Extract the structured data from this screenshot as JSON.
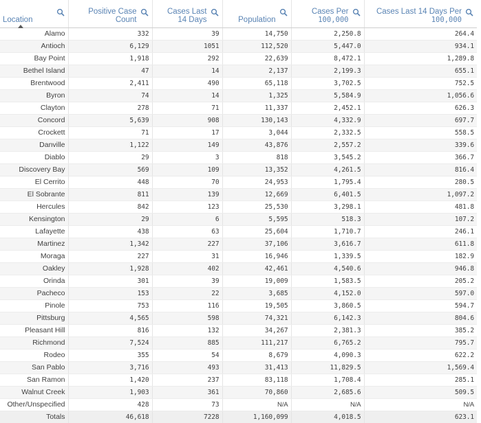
{
  "headers": {
    "location": "Location",
    "positive_case_count_line1": "Positive Case",
    "positive_case_count_line2": "Count",
    "cases_last_14_line1": "Cases Last",
    "cases_last_14_line2": "14 Days",
    "population": "Population",
    "cases_per_line1": "Cases Per",
    "cases_per_line2": "100,000",
    "cases_14_per_line1": "Cases Last 14 Days Per",
    "cases_14_per_line2": "100,000"
  },
  "rows": [
    {
      "location": "Alamo",
      "positive": "332",
      "last14": "39",
      "population": "14,750",
      "per100k": "2,250.8",
      "last14per100k": "264.4"
    },
    {
      "location": "Antioch",
      "positive": "6,129",
      "last14": "1051",
      "population": "112,520",
      "per100k": "5,447.0",
      "last14per100k": "934.1"
    },
    {
      "location": "Bay Point",
      "positive": "1,918",
      "last14": "292",
      "population": "22,639",
      "per100k": "8,472.1",
      "last14per100k": "1,289.8"
    },
    {
      "location": "Bethel Island",
      "positive": "47",
      "last14": "14",
      "population": "2,137",
      "per100k": "2,199.3",
      "last14per100k": "655.1"
    },
    {
      "location": "Brentwood",
      "positive": "2,411",
      "last14": "490",
      "population": "65,118",
      "per100k": "3,702.5",
      "last14per100k": "752.5"
    },
    {
      "location": "Byron",
      "positive": "74",
      "last14": "14",
      "population": "1,325",
      "per100k": "5,584.9",
      "last14per100k": "1,056.6"
    },
    {
      "location": "Clayton",
      "positive": "278",
      "last14": "71",
      "population": "11,337",
      "per100k": "2,452.1",
      "last14per100k": "626.3"
    },
    {
      "location": "Concord",
      "positive": "5,639",
      "last14": "908",
      "population": "130,143",
      "per100k": "4,332.9",
      "last14per100k": "697.7"
    },
    {
      "location": "Crockett",
      "positive": "71",
      "last14": "17",
      "population": "3,044",
      "per100k": "2,332.5",
      "last14per100k": "558.5"
    },
    {
      "location": "Danville",
      "positive": "1,122",
      "last14": "149",
      "population": "43,876",
      "per100k": "2,557.2",
      "last14per100k": "339.6"
    },
    {
      "location": "Diablo",
      "positive": "29",
      "last14": "3",
      "population": "818",
      "per100k": "3,545.2",
      "last14per100k": "366.7"
    },
    {
      "location": "Discovery Bay",
      "positive": "569",
      "last14": "109",
      "population": "13,352",
      "per100k": "4,261.5",
      "last14per100k": "816.4"
    },
    {
      "location": "El Cerrito",
      "positive": "448",
      "last14": "70",
      "population": "24,953",
      "per100k": "1,795.4",
      "last14per100k": "280.5"
    },
    {
      "location": "El Sobrante",
      "positive": "811",
      "last14": "139",
      "population": "12,669",
      "per100k": "6,401.5",
      "last14per100k": "1,097.2"
    },
    {
      "location": "Hercules",
      "positive": "842",
      "last14": "123",
      "population": "25,530",
      "per100k": "3,298.1",
      "last14per100k": "481.8"
    },
    {
      "location": "Kensington",
      "positive": "29",
      "last14": "6",
      "population": "5,595",
      "per100k": "518.3",
      "last14per100k": "107.2"
    },
    {
      "location": "Lafayette",
      "positive": "438",
      "last14": "63",
      "population": "25,604",
      "per100k": "1,710.7",
      "last14per100k": "246.1"
    },
    {
      "location": "Martinez",
      "positive": "1,342",
      "last14": "227",
      "population": "37,106",
      "per100k": "3,616.7",
      "last14per100k": "611.8"
    },
    {
      "location": "Moraga",
      "positive": "227",
      "last14": "31",
      "population": "16,946",
      "per100k": "1,339.5",
      "last14per100k": "182.9"
    },
    {
      "location": "Oakley",
      "positive": "1,928",
      "last14": "402",
      "population": "42,461",
      "per100k": "4,540.6",
      "last14per100k": "946.8"
    },
    {
      "location": "Orinda",
      "positive": "301",
      "last14": "39",
      "population": "19,009",
      "per100k": "1,583.5",
      "last14per100k": "205.2"
    },
    {
      "location": "Pacheco",
      "positive": "153",
      "last14": "22",
      "population": "3,685",
      "per100k": "4,152.0",
      "last14per100k": "597.0"
    },
    {
      "location": "Pinole",
      "positive": "753",
      "last14": "116",
      "population": "19,505",
      "per100k": "3,860.5",
      "last14per100k": "594.7"
    },
    {
      "location": "Pittsburg",
      "positive": "4,565",
      "last14": "598",
      "population": "74,321",
      "per100k": "6,142.3",
      "last14per100k": "804.6"
    },
    {
      "location": "Pleasant Hill",
      "positive": "816",
      "last14": "132",
      "population": "34,267",
      "per100k": "2,381.3",
      "last14per100k": "385.2"
    },
    {
      "location": "Richmond",
      "positive": "7,524",
      "last14": "885",
      "population": "111,217",
      "per100k": "6,765.2",
      "last14per100k": "795.7"
    },
    {
      "location": "Rodeo",
      "positive": "355",
      "last14": "54",
      "population": "8,679",
      "per100k": "4,090.3",
      "last14per100k": "622.2"
    },
    {
      "location": "San Pablo",
      "positive": "3,716",
      "last14": "493",
      "population": "31,413",
      "per100k": "11,829.5",
      "last14per100k": "1,569.4"
    },
    {
      "location": "San Ramon",
      "positive": "1,420",
      "last14": "237",
      "population": "83,118",
      "per100k": "1,708.4",
      "last14per100k": "285.1"
    },
    {
      "location": "Walnut Creek",
      "positive": "1,903",
      "last14": "361",
      "population": "70,860",
      "per100k": "2,685.6",
      "last14per100k": "509.5"
    },
    {
      "location": "Other/Unspecified",
      "positive": "428",
      "last14": "73",
      "population": "N/A",
      "per100k": "N/A",
      "last14per100k": "N/A"
    }
  ],
  "totals": {
    "location": "Totals",
    "positive": "46,618",
    "last14": "7228",
    "population": "1,160,099",
    "per100k": "4,018.5",
    "last14per100k": "623.1"
  },
  "icons": {
    "search": "search-icon",
    "sort": "sort-ascending-icon"
  },
  "colors": {
    "header_text": "#5a84b4",
    "body_text": "#404040",
    "stripe": "#f5f5f5"
  }
}
